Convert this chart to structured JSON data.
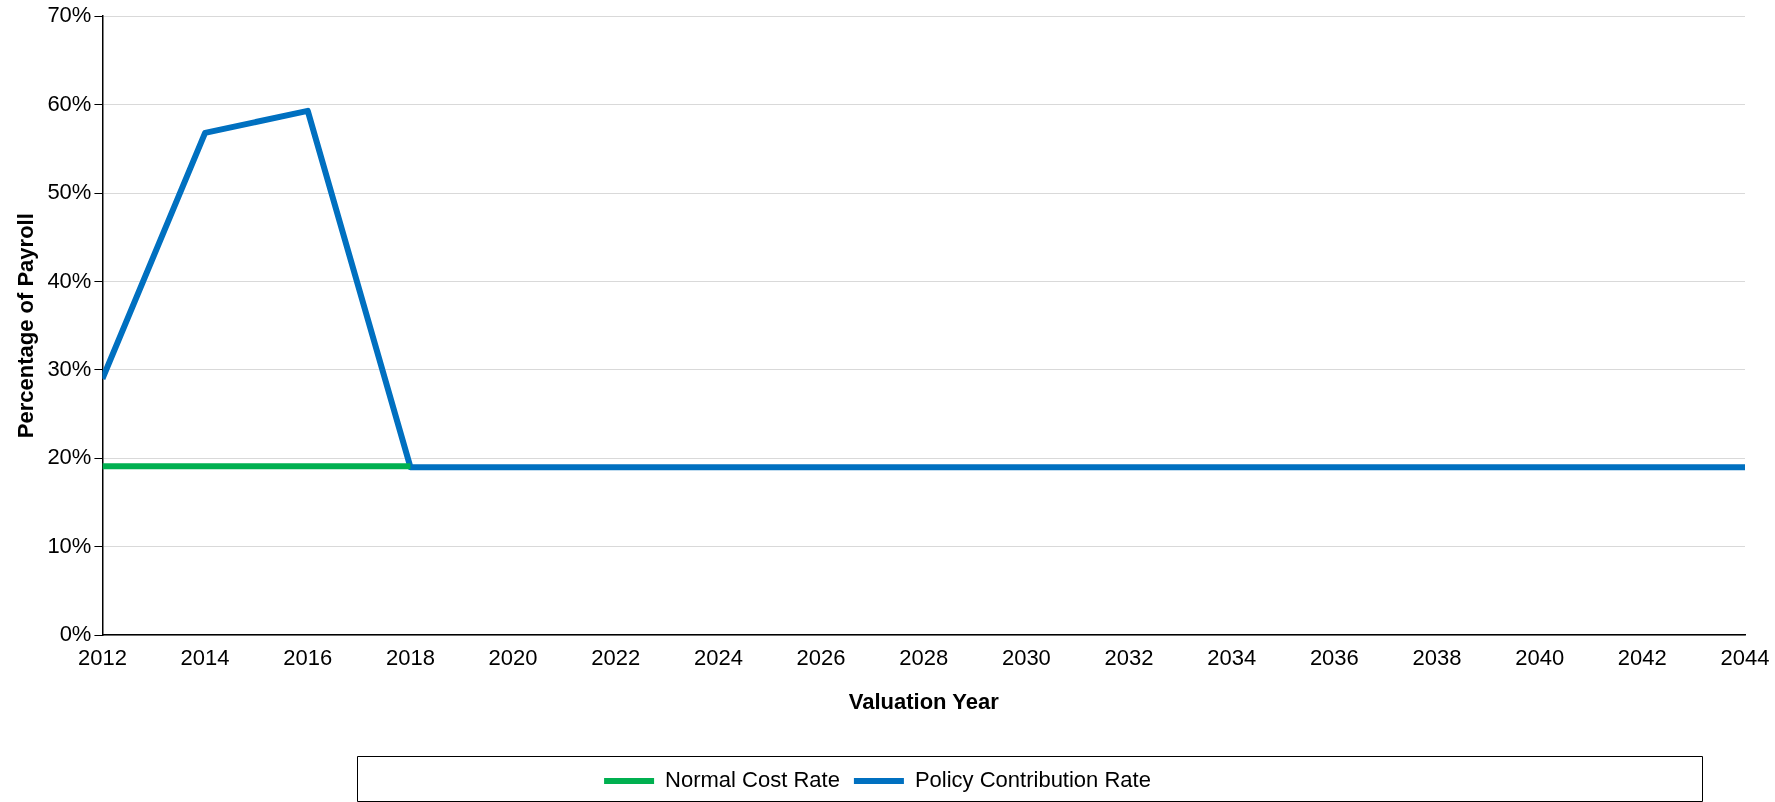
{
  "chart_data": {
    "type": "line",
    "xlabel": "Valuation Year",
    "ylabel": "Percentage of Payroll",
    "x": [
      2012,
      2014,
      2016,
      2018,
      2020,
      2022,
      2024,
      2026,
      2028,
      2030,
      2032,
      2034,
      2036,
      2038,
      2040,
      2042,
      2044
    ],
    "series": [
      {
        "name": "Normal Cost Rate",
        "color": "#00b050",
        "values": [
          19.1,
          19.1,
          19.1,
          19.1,
          null,
          null,
          null,
          null,
          null,
          null,
          null,
          null,
          null,
          null,
          null,
          null,
          null
        ]
      },
      {
        "name": "Policy Contribution Rate",
        "color": "#0070c0",
        "values": [
          29.0,
          56.8,
          59.3,
          19.0,
          19.0,
          19.0,
          19.0,
          19.0,
          19.0,
          19.0,
          19.0,
          19.0,
          19.0,
          19.0,
          19.0,
          19.0,
          19.0
        ]
      }
    ],
    "xlim": [
      2012,
      2044
    ],
    "xticks": [
      2012,
      2014,
      2016,
      2018,
      2020,
      2022,
      2024,
      2026,
      2028,
      2030,
      2032,
      2034,
      2036,
      2038,
      2040,
      2042,
      2044
    ],
    "ylim": [
      0,
      70
    ],
    "yticks": [
      {
        "value": 0,
        "label": "0%"
      },
      {
        "value": 10,
        "label": "10%"
      },
      {
        "value": 20,
        "label": "20%"
      },
      {
        "value": 30,
        "label": "30%"
      },
      {
        "value": 40,
        "label": "40%"
      },
      {
        "value": 50,
        "label": "50%"
      },
      {
        "value": 60,
        "label": "60%"
      },
      {
        "value": 70,
        "label": "70%"
      }
    ],
    "grid": "y",
    "legend": "bottom",
    "marker": "none",
    "line_style": "solid"
  }
}
